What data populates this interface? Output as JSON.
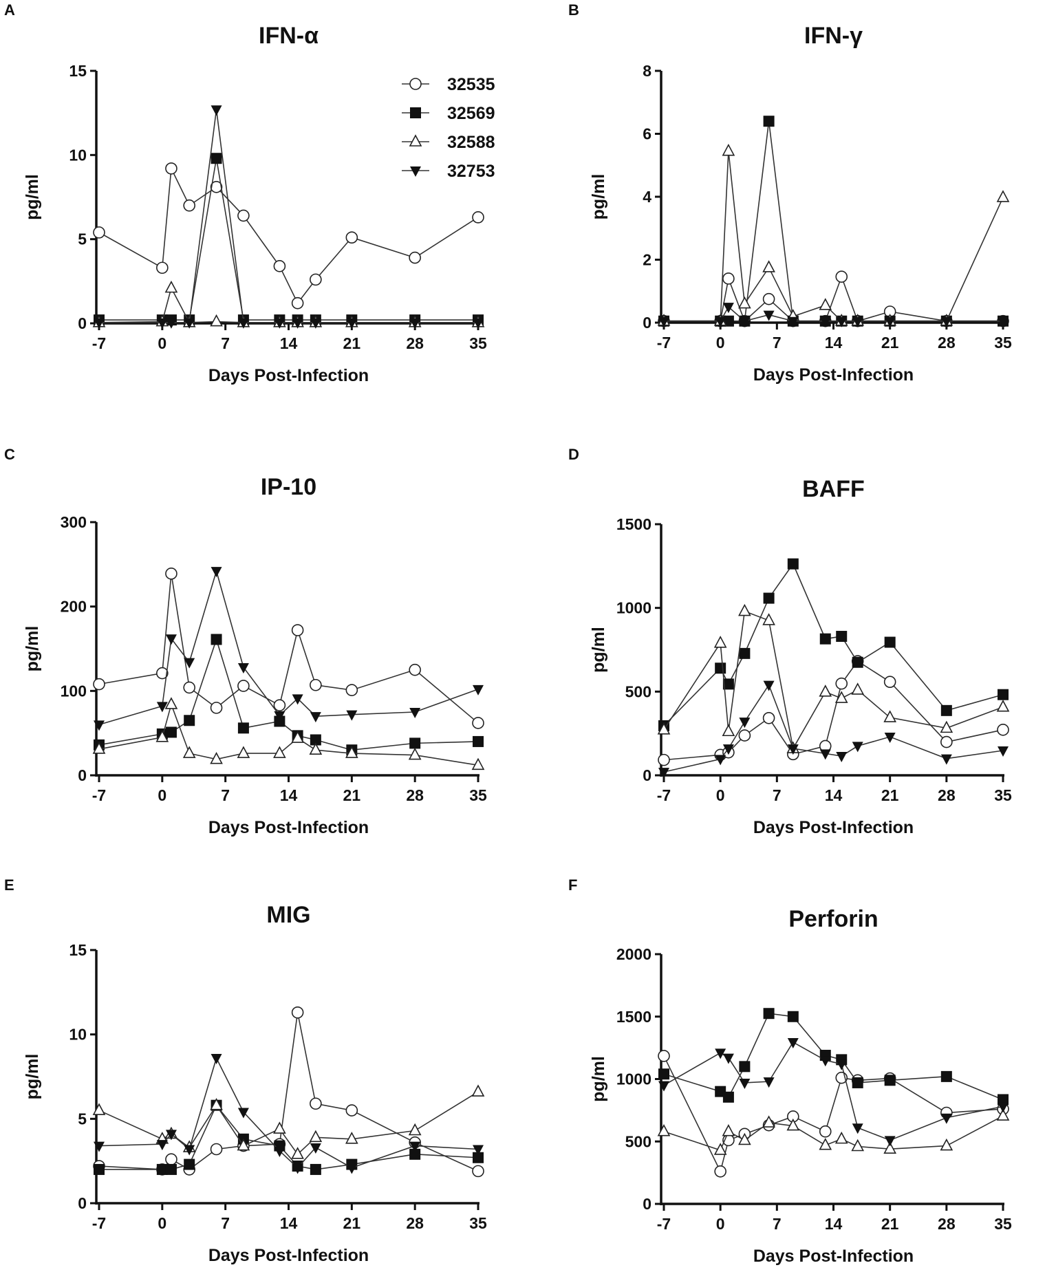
{
  "legend": [
    {
      "name": "32535",
      "marker": "open-circle"
    },
    {
      "name": "32569",
      "marker": "filled-square"
    },
    {
      "name": "32588",
      "marker": "open-triangle-up"
    },
    {
      "name": "32753",
      "marker": "filled-triangle-down"
    }
  ],
  "chart_data": [
    {
      "type": "line",
      "panel": "A",
      "title": "IFN-α",
      "xlabel": "Days Post-Infection",
      "ylabel": "pg/ml",
      "xlim": [
        -7,
        35
      ],
      "xticks": [
        "-7",
        "0",
        "7",
        "14",
        "21",
        "28",
        "35"
      ],
      "ylim": [
        0,
        15
      ],
      "yticks": [
        "0",
        "5",
        "10",
        "15"
      ],
      "x": [
        -7,
        0,
        1,
        3,
        6,
        9,
        13,
        15,
        17,
        21,
        28,
        35
      ],
      "series": [
        {
          "name": "32535",
          "values": [
            5.4,
            3.3,
            9.2,
            7.0,
            8.1,
            6.4,
            3.4,
            1.2,
            2.6,
            5.1,
            3.9,
            6.3
          ]
        },
        {
          "name": "32569",
          "values": [
            0.2,
            0.2,
            0.2,
            0.2,
            9.8,
            0.2,
            0.2,
            0.2,
            0.2,
            0.2,
            0.2,
            0.2
          ]
        },
        {
          "name": "32588",
          "values": [
            0.05,
            0.1,
            2.1,
            0.05,
            0.1,
            0.05,
            0.05,
            0.05,
            0.05,
            0.05,
            0.05,
            0.05
          ]
        },
        {
          "name": "32753",
          "values": [
            0.05,
            0.05,
            0.05,
            0.05,
            12.7,
            0.05,
            0.05,
            0.05,
            0.05,
            0.05,
            0.05,
            0.05
          ]
        }
      ]
    },
    {
      "type": "line",
      "panel": "B",
      "title": "IFN-γ",
      "xlabel": "Days Post-Infection",
      "ylabel": "pg/ml",
      "xlim": [
        -7,
        35
      ],
      "xticks": [
        "-7",
        "0",
        "7",
        "14",
        "21",
        "28",
        "35"
      ],
      "ylim": [
        0,
        8
      ],
      "yticks": [
        "0",
        "2",
        "4",
        "6",
        "8"
      ],
      "x": [
        -7,
        0,
        1,
        3,
        6,
        9,
        13,
        15,
        17,
        21,
        28,
        35
      ],
      "series": [
        {
          "name": "32535",
          "values": [
            0.05,
            0.05,
            1.4,
            0.05,
            0.75,
            0.05,
            0.05,
            1.46,
            0.05,
            0.35,
            0.05,
            0.05
          ]
        },
        {
          "name": "32569",
          "values": [
            0.05,
            0.05,
            0.05,
            0.05,
            6.4,
            0.05,
            0.05,
            0.05,
            0.05,
            0.05,
            0.05,
            0.05
          ]
        },
        {
          "name": "32588",
          "values": [
            0.05,
            0.05,
            5.45,
            0.6,
            1.75,
            0.2,
            0.55,
            0.05,
            0.05,
            0.05,
            0.05,
            3.98
          ]
        },
        {
          "name": "32753",
          "values": [
            0.05,
            0.05,
            0.5,
            0.05,
            0.25,
            0.05,
            0.05,
            0.05,
            0.05,
            0.05,
            0.05,
            0.05
          ]
        }
      ]
    },
    {
      "type": "line",
      "panel": "C",
      "title": "IP-10",
      "xlabel": "Days Post-Infection",
      "ylabel": "pg/ml",
      "xlim": [
        -7,
        35
      ],
      "xticks": [
        "-7",
        "0",
        "7",
        "14",
        "21",
        "28",
        "35"
      ],
      "ylim": [
        0,
        300
      ],
      "yticks": [
        "0",
        "100",
        "200",
        "300"
      ],
      "x": [
        -7,
        0,
        1,
        3,
        6,
        9,
        13,
        15,
        17,
        21,
        28,
        35
      ],
      "series": [
        {
          "name": "32535",
          "values": [
            108,
            121,
            239,
            104,
            80,
            106,
            83,
            172,
            107,
            101,
            125,
            62
          ]
        },
        {
          "name": "32569",
          "values": [
            36,
            49,
            51,
            65,
            161,
            56,
            64,
            47,
            42,
            30,
            38,
            40
          ]
        },
        {
          "name": "32588",
          "values": [
            31,
            45,
            84,
            26,
            19,
            26,
            26,
            44,
            30,
            26,
            24,
            12
          ]
        },
        {
          "name": "32753",
          "values": [
            60,
            82,
            162,
            134,
            242,
            128,
            71,
            91,
            70,
            72,
            75,
            102
          ]
        }
      ]
    },
    {
      "type": "line",
      "panel": "D",
      "title": "BAFF",
      "xlabel": "Days Post-Infection",
      "ylabel": "pg/ml",
      "xlim": [
        -7,
        35
      ],
      "xticks": [
        "-7",
        "0",
        "7",
        "14",
        "21",
        "28",
        "35"
      ],
      "ylim": [
        0,
        1500
      ],
      "yticks": [
        "0",
        "500",
        "1000",
        "1500"
      ],
      "x": [
        -7,
        0,
        1,
        3,
        6,
        9,
        13,
        15,
        17,
        21,
        28,
        35
      ],
      "series": [
        {
          "name": "32535",
          "values": [
            92,
            122,
            137,
            238,
            342,
            126,
            175,
            548,
            682,
            558,
            199,
            272
          ]
        },
        {
          "name": "32569",
          "values": [
            296,
            640,
            545,
            728,
            1058,
            1263,
            815,
            830,
            675,
            795,
            387,
            482
          ]
        },
        {
          "name": "32588",
          "values": [
            272,
            790,
            262,
            980,
            925,
            160,
            498,
            460,
            510,
            345,
            282,
            408
          ]
        },
        {
          "name": "32753",
          "values": [
            20,
            97,
            160,
            320,
            540,
            160,
            130,
            115,
            175,
            230,
            100,
            148
          ]
        }
      ]
    },
    {
      "type": "line",
      "panel": "E",
      "title": "MIG",
      "xlabel": "Days Post-Infection",
      "ylabel": "pg/ml",
      "xlim": [
        -7,
        35
      ],
      "xticks": [
        "-7",
        "0",
        "7",
        "14",
        "21",
        "28",
        "35"
      ],
      "ylim": [
        0,
        15
      ],
      "yticks": [
        "0",
        "5",
        "10",
        "15"
      ],
      "x": [
        -7,
        0,
        1,
        3,
        6,
        9,
        13,
        15,
        17,
        21,
        28,
        35
      ],
      "series": [
        {
          "name": "32535",
          "values": [
            2.2,
            2.0,
            2.6,
            2.0,
            3.2,
            3.4,
            3.5,
            11.3,
            5.9,
            5.5,
            3.6,
            1.9
          ]
        },
        {
          "name": "32569",
          "values": [
            2.0,
            2.0,
            2.0,
            2.3,
            5.8,
            3.8,
            3.4,
            2.2,
            2.0,
            2.3,
            2.9,
            2.7
          ]
        },
        {
          "name": "32588",
          "values": [
            5.5,
            3.8,
            4.1,
            3.3,
            5.8,
            3.4,
            4.4,
            2.9,
            3.9,
            3.8,
            4.3,
            6.6
          ]
        },
        {
          "name": "32753",
          "values": [
            3.4,
            3.5,
            4.1,
            3.2,
            8.6,
            5.4,
            3.1,
            2.1,
            3.3,
            2.1,
            3.4,
            3.2
          ]
        }
      ]
    },
    {
      "type": "line",
      "panel": "F",
      "title": "Perforin",
      "xlabel": "Days Post-Infection",
      "ylabel": "pg/ml",
      "xlim": [
        -7,
        35
      ],
      "xticks": [
        "-7",
        "0",
        "7",
        "14",
        "21",
        "28",
        "35"
      ],
      "ylim": [
        0,
        2000
      ],
      "yticks": [
        "0",
        "500",
        "1000",
        "1500",
        "2000"
      ],
      "x": [
        -7,
        0,
        1,
        3,
        6,
        9,
        13,
        15,
        17,
        21,
        28,
        35
      ],
      "series": [
        {
          "name": "32535",
          "values": [
            1185,
            260,
            510,
            560,
            630,
            700,
            580,
            1010,
            990,
            1005,
            730,
            760
          ]
        },
        {
          "name": "32569",
          "values": [
            1040,
            900,
            855,
            1100,
            1525,
            1500,
            1190,
            1155,
            970,
            990,
            1020,
            835
          ]
        },
        {
          "name": "32588",
          "values": [
            580,
            430,
            580,
            510,
            650,
            625,
            470,
            520,
            460,
            440,
            465,
            705
          ]
        },
        {
          "name": "32753",
          "values": [
            950,
            1210,
            1170,
            970,
            980,
            1295,
            1150,
            1120,
            610,
            510,
            690,
            780
          ]
        }
      ]
    }
  ]
}
